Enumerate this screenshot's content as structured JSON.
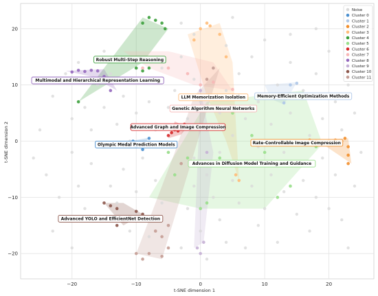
{
  "chart_data": {
    "type": "scatter",
    "xlabel": "t-SNE dimension 1",
    "ylabel": "t-SNE dimension 2",
    "xlim": [
      -28,
      27
    ],
    "ylim": [
      -24.5,
      24.5
    ],
    "xticks": [
      -20,
      -10,
      0,
      10,
      20
    ],
    "yticks": [
      -20,
      -10,
      0,
      10,
      20
    ],
    "grid": true,
    "legend_position": "top-right",
    "noise": {
      "name": "Noise",
      "color": "#d9d9d9",
      "points": [
        [
          -25,
          2
        ],
        [
          -24,
          -6
        ],
        [
          -23,
          8
        ],
        [
          -22,
          -10
        ],
        [
          -21,
          12
        ],
        [
          -20,
          4
        ],
        [
          -20,
          -2
        ],
        [
          -19,
          -8
        ],
        [
          -19,
          14
        ],
        [
          -18,
          6
        ],
        [
          -18,
          -12
        ],
        [
          -17,
          2
        ],
        [
          -17,
          -4
        ],
        [
          -16,
          10
        ],
        [
          -16,
          -14
        ],
        [
          -15,
          6
        ],
        [
          -15,
          -1
        ],
        [
          -14,
          12
        ],
        [
          -14,
          -8
        ],
        [
          -13,
          3
        ],
        [
          -13,
          -11
        ],
        [
          -12,
          8
        ],
        [
          -12,
          -5
        ],
        [
          -11,
          14
        ],
        [
          -11,
          0
        ],
        [
          -11,
          -16
        ],
        [
          -10,
          5
        ],
        [
          -10,
          -9
        ],
        [
          -9,
          11
        ],
        [
          -9,
          -3
        ],
        [
          -9,
          -13
        ],
        [
          -8,
          7
        ],
        [
          -8,
          -17
        ],
        [
          -7,
          2
        ],
        [
          -7,
          -7
        ],
        [
          -6,
          13
        ],
        [
          -6,
          -11
        ],
        [
          -5,
          6
        ],
        [
          -5,
          -2
        ],
        [
          -5,
          -15
        ],
        [
          -4,
          9
        ],
        [
          -4,
          -6
        ],
        [
          -3,
          15
        ],
        [
          -3,
          -19
        ],
        [
          -2,
          4
        ],
        [
          -2,
          -12
        ],
        [
          -1,
          11
        ],
        [
          -1,
          -3
        ],
        [
          -1,
          -8
        ],
        [
          0,
          7
        ],
        [
          0,
          -16
        ],
        [
          1,
          2
        ],
        [
          1,
          -6
        ],
        [
          1,
          -21
        ],
        [
          2,
          13
        ],
        [
          2,
          -10
        ],
        [
          3,
          5
        ],
        [
          3,
          -2
        ],
        [
          3,
          -14
        ],
        [
          4,
          17
        ],
        [
          4,
          9
        ],
        [
          4,
          -18
        ],
        [
          5,
          1
        ],
        [
          5,
          -7
        ],
        [
          6,
          12
        ],
        [
          6,
          -11
        ],
        [
          7,
          4
        ],
        [
          7,
          -4
        ],
        [
          7,
          -19
        ],
        [
          8,
          15
        ],
        [
          8,
          -8
        ],
        [
          9,
          7
        ],
        [
          9,
          -1
        ],
        [
          9,
          -15
        ],
        [
          10,
          18
        ],
        [
          10,
          -12
        ],
        [
          11,
          3
        ],
        [
          11,
          -6
        ],
        [
          12,
          10
        ],
        [
          12,
          -18
        ],
        [
          13,
          -2
        ],
        [
          13,
          -9
        ],
        [
          14,
          14
        ],
        [
          14,
          5
        ],
        [
          15,
          -4
        ],
        [
          15,
          -13
        ],
        [
          16,
          9
        ],
        [
          16,
          -7
        ],
        [
          17,
          1
        ],
        [
          17,
          -16
        ],
        [
          18,
          12
        ],
        [
          18,
          -10
        ],
        [
          19,
          4
        ],
        [
          19,
          -3
        ],
        [
          20,
          16
        ],
        [
          20,
          -12
        ],
        [
          21,
          7
        ],
        [
          21,
          -6
        ],
        [
          22,
          -14
        ],
        [
          22,
          2
        ],
        [
          23,
          10
        ],
        [
          24,
          -8
        ],
        [
          24,
          5
        ],
        [
          25,
          -2
        ],
        [
          -23,
          -16
        ],
        [
          -26,
          -3
        ],
        [
          -15,
          16
        ],
        [
          -3,
          21
        ],
        [
          -1,
          19
        ],
        [
          14,
          19
        ],
        [
          18,
          20
        ],
        [
          23,
          -19
        ],
        [
          -20,
          -19
        ],
        [
          5,
          22
        ]
      ]
    },
    "clusters": [
      {
        "name": "Cluster 0",
        "color": "#4a8fcf",
        "label": "Olympic Medal Prediction Models",
        "hull": [
          [
            -13,
            -0.5
          ],
          [
            -9,
            -0.8
          ],
          [
            -8,
            0.6
          ],
          [
            -10,
            0.2
          ]
        ],
        "points": [
          [
            -12,
            -0.5
          ],
          [
            -11,
            -0.8
          ],
          [
            -10,
            -1
          ],
          [
            -9,
            -1.5
          ],
          [
            -8,
            0.5
          ],
          [
            -10.5,
            0
          ]
        ]
      },
      {
        "name": "Cluster 1",
        "color": "#aec7e8",
        "label": "Memory-Efficient Optimization Methods",
        "hull": [
          [
            10,
            10
          ],
          [
            15,
            10.5
          ],
          [
            13,
            6.5
          ],
          [
            11,
            7.5
          ]
        ],
        "points": [
          [
            13,
            6.8
          ],
          [
            14,
            10
          ],
          [
            15,
            10.3
          ],
          [
            12,
            8
          ]
        ]
      },
      {
        "name": "Cluster 2",
        "color": "#f28e2b",
        "label": "Rate-Controllable Image Compression",
        "hull": [
          [
            17,
            0.2
          ],
          [
            23,
            0.5
          ],
          [
            23.5,
            -4
          ],
          [
            19,
            -0.5
          ]
        ],
        "points": [
          [
            17,
            0.2
          ],
          [
            18,
            0
          ],
          [
            19,
            -0.3
          ],
          [
            20,
            0.1
          ],
          [
            21,
            0.2
          ],
          [
            22,
            0
          ],
          [
            23,
            -1
          ],
          [
            23,
            -2.5
          ],
          [
            23,
            -4
          ],
          [
            22.5,
            0.5
          ]
        ]
      },
      {
        "name": "Cluster 3",
        "color": "#ffbb78",
        "label": "LLM Memorization Isolation",
        "hull": [
          [
            -2,
            19
          ],
          [
            3,
            21
          ],
          [
            5,
            14
          ],
          [
            6,
            -7
          ],
          [
            4,
            0
          ],
          [
            1,
            8
          ]
        ],
        "points": [
          [
            -1,
            18
          ],
          [
            0,
            20
          ],
          [
            1,
            21
          ],
          [
            1.5,
            20.5
          ],
          [
            3,
            19
          ],
          [
            4,
            15
          ],
          [
            5,
            8
          ],
          [
            5.5,
            -6
          ],
          [
            6,
            -7
          ]
        ]
      },
      {
        "name": "Cluster 4",
        "color": "#3a9e3a",
        "label": "Robust Multi-Step Reasoning",
        "hull": [
          [
            -19,
            7
          ],
          [
            -9,
            22
          ],
          [
            -5,
            20
          ],
          [
            -9,
            14
          ]
        ],
        "points": [
          [
            -19,
            7
          ],
          [
            -9,
            21
          ],
          [
            -8,
            22
          ],
          [
            -7,
            21.5
          ],
          [
            -6,
            21
          ],
          [
            -5.5,
            20
          ],
          [
            -10,
            13
          ],
          [
            -9,
            12.5
          ],
          [
            -8,
            13
          ]
        ]
      },
      {
        "name": "Cluster 5",
        "color": "#98df8a",
        "label": "Advances in Diffusion Model Training and Guidance",
        "hull": [
          [
            -8,
            -10
          ],
          [
            1,
            7
          ],
          [
            16,
            9
          ],
          [
            19,
            -0.5
          ],
          [
            10,
            -12
          ],
          [
            0,
            -12
          ]
        ],
        "points": [
          [
            -5,
            -2
          ],
          [
            -4,
            -6
          ],
          [
            -2,
            -3
          ],
          [
            0,
            -12
          ],
          [
            1,
            -11
          ],
          [
            3,
            -3
          ],
          [
            5,
            5
          ],
          [
            8,
            1
          ],
          [
            10,
            -2
          ],
          [
            12,
            -10
          ],
          [
            14,
            -8
          ],
          [
            16,
            8
          ],
          [
            18,
            -1
          ]
        ]
      },
      {
        "name": "Cluster 6",
        "color": "#d62728",
        "label": "Advanced Graph and Image Compression",
        "hull": [
          [
            -5,
            0.5
          ],
          [
            -4,
            3.5
          ],
          [
            -2,
            2.5
          ],
          [
            -3,
            1.2
          ]
        ],
        "points": [
          [
            -5,
            1
          ],
          [
            -4.5,
            1.5
          ],
          [
            -4,
            2
          ],
          [
            -3.5,
            1.8
          ],
          [
            -3,
            2.2
          ],
          [
            -2.5,
            3
          ]
        ]
      },
      {
        "name": "Cluster 7",
        "color": "#f7b6b6",
        "label": "Genetic Algorithm Neural Networks",
        "hull": [
          [
            -12,
            16
          ],
          [
            -5,
            16
          ],
          [
            2,
            14
          ],
          [
            5,
            9
          ],
          [
            -1,
            10
          ],
          [
            -8,
            13
          ]
        ],
        "points": [
          [
            -9,
            13
          ],
          [
            -5,
            13
          ],
          [
            -2,
            12
          ],
          [
            0,
            10
          ],
          [
            2,
            10.5
          ],
          [
            5,
            9.2
          ]
        ]
      },
      {
        "name": "Cluster 8",
        "color": "#9467bd",
        "label": "Multimodal and Hierarchical Representation Learning",
        "hull": [
          [
            -21,
            12.5
          ],
          [
            -15,
            12.8
          ],
          [
            -13,
            9
          ],
          [
            -17,
            11.5
          ]
        ],
        "points": [
          [
            -20,
            12.3
          ],
          [
            -19,
            12.6
          ],
          [
            -18,
            12.4
          ],
          [
            -17,
            12.6
          ],
          [
            -16,
            12.5
          ],
          [
            -14,
            9
          ],
          [
            -15,
            11.5
          ]
        ]
      },
      {
        "name": "Cluster 9",
        "color": "#c5b0d5",
        "label": "",
        "hull": [
          [
            -1,
            -19
          ],
          [
            0,
            9
          ],
          [
            2,
            -2
          ],
          [
            0.5,
            -18
          ]
        ],
        "points": [
          [
            0,
            9
          ],
          [
            1,
            -2
          ],
          [
            0.5,
            -18
          ],
          [
            -0.5,
            -19
          ],
          [
            0,
            -20
          ]
        ]
      },
      {
        "name": "Cluster 10",
        "color": "#8c564b",
        "label": "Advanced YOLO and EfficientNet Detection",
        "hull": [
          [
            -15,
            -11
          ],
          [
            -12,
            -15
          ],
          [
            -9,
            -13
          ],
          [
            -12,
            -11
          ]
        ],
        "points": [
          [
            -15,
            -11
          ],
          [
            -14,
            -11.5
          ],
          [
            -13,
            -12
          ],
          [
            -12,
            -14
          ],
          [
            -11,
            -13.5
          ],
          [
            -10,
            -12.5
          ],
          [
            -9,
            -13
          ],
          [
            -13,
            -15
          ]
        ]
      },
      {
        "name": "Cluster 11",
        "color": "#c49c94",
        "label": "",
        "hull": [
          [
            -10,
            -20
          ],
          [
            -6,
            -21
          ],
          [
            3,
            13
          ],
          [
            -1,
            8
          ],
          [
            -4,
            -2
          ]
        ],
        "points": [
          [
            -10,
            -20
          ],
          [
            -9,
            -21
          ],
          [
            -8,
            -20
          ],
          [
            -6,
            -20.5
          ],
          [
            -5,
            -19
          ],
          [
            -6,
            -17
          ],
          [
            -7,
            -16
          ],
          [
            -5,
            -15
          ],
          [
            2,
            13
          ],
          [
            1,
            11
          ],
          [
            -3,
            -4
          ]
        ]
      }
    ],
    "label_positions_data": [
      {
        "cluster": "Cluster 4",
        "x": -11,
        "y": 14.5
      },
      {
        "cluster": "Cluster 8",
        "x": -16,
        "y": 10.8
      },
      {
        "cluster": "Cluster 3",
        "x": 2,
        "y": 7.8
      },
      {
        "cluster": "Cluster 1",
        "x": 16,
        "y": 8
      },
      {
        "cluster": "Cluster 7",
        "x": 2,
        "y": 5.8
      },
      {
        "cluster": "Cluster 6",
        "x": -3.5,
        "y": 2.5
      },
      {
        "cluster": "Cluster 0",
        "x": -10,
        "y": -0.6
      },
      {
        "cluster": "Cluster 2",
        "x": 15,
        "y": -0.3
      },
      {
        "cluster": "Cluster 5",
        "x": 8,
        "y": -4
      },
      {
        "cluster": "Cluster 10",
        "x": -14,
        "y": -13.8
      }
    ]
  }
}
